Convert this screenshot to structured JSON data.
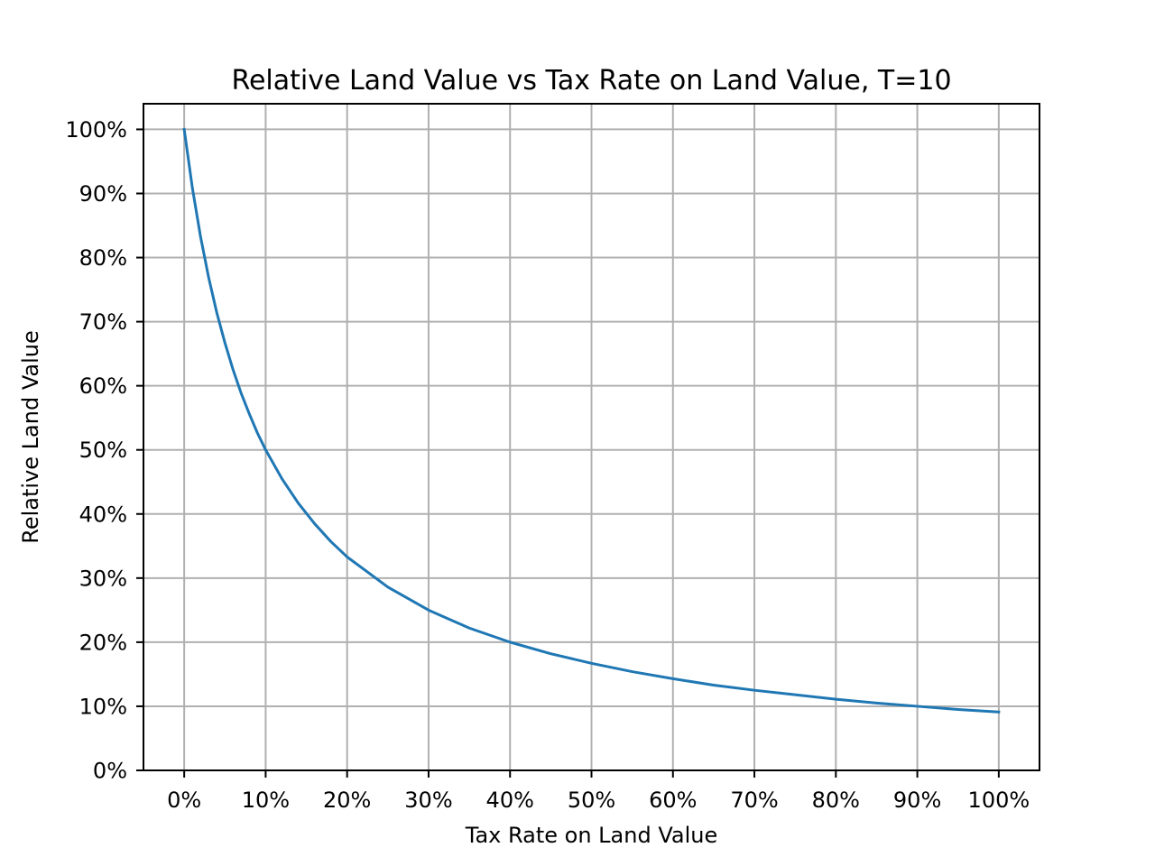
{
  "chart_data": {
    "type": "line",
    "title": "Relative Land Value vs Tax Rate on Land Value, T=10",
    "xlabel": "Tax Rate on Land Value",
    "ylabel": "Relative Land Value",
    "xlim": [
      -0.05,
      1.05
    ],
    "ylim": [
      0,
      1.04
    ],
    "grid": true,
    "x_ticks": [
      {
        "value": 0.0,
        "label": "0%"
      },
      {
        "value": 0.1,
        "label": "10%"
      },
      {
        "value": 0.2,
        "label": "20%"
      },
      {
        "value": 0.3,
        "label": "30%"
      },
      {
        "value": 0.4,
        "label": "40%"
      },
      {
        "value": 0.5,
        "label": "50%"
      },
      {
        "value": 0.6,
        "label": "60%"
      },
      {
        "value": 0.7,
        "label": "70%"
      },
      {
        "value": 0.8,
        "label": "80%"
      },
      {
        "value": 0.9,
        "label": "90%"
      },
      {
        "value": 1.0,
        "label": "100%"
      }
    ],
    "y_ticks": [
      {
        "value": 0.0,
        "label": "0%"
      },
      {
        "value": 0.1,
        "label": "10%"
      },
      {
        "value": 0.2,
        "label": "20%"
      },
      {
        "value": 0.3,
        "label": "30%"
      },
      {
        "value": 0.4,
        "label": "40%"
      },
      {
        "value": 0.5,
        "label": "50%"
      },
      {
        "value": 0.6,
        "label": "60%"
      },
      {
        "value": 0.7,
        "label": "70%"
      },
      {
        "value": 0.8,
        "label": "80%"
      },
      {
        "value": 0.9,
        "label": "90%"
      },
      {
        "value": 1.0,
        "label": "100%"
      }
    ],
    "series": [
      {
        "color": "#1f77b4",
        "x": [
          0.0,
          0.01,
          0.02,
          0.03,
          0.04,
          0.05,
          0.06,
          0.07,
          0.08,
          0.09,
          0.1,
          0.12,
          0.14,
          0.16,
          0.18,
          0.2,
          0.25,
          0.3,
          0.35,
          0.4,
          0.45,
          0.5,
          0.55,
          0.6,
          0.65,
          0.7,
          0.75,
          0.8,
          0.85,
          0.9,
          0.95,
          1.0
        ],
        "y": [
          1.0,
          0.909,
          0.833,
          0.769,
          0.714,
          0.667,
          0.625,
          0.588,
          0.556,
          0.526,
          0.5,
          0.455,
          0.417,
          0.385,
          0.357,
          0.333,
          0.286,
          0.25,
          0.222,
          0.2,
          0.182,
          0.167,
          0.154,
          0.143,
          0.133,
          0.125,
          0.118,
          0.111,
          0.105,
          0.1,
          0.095,
          0.091
        ]
      }
    ]
  }
}
